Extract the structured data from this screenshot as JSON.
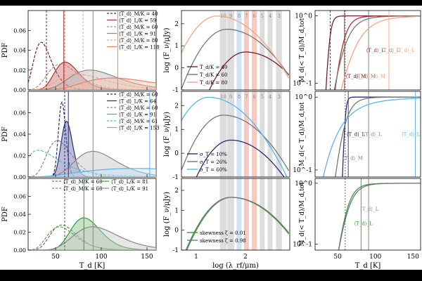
{
  "chart_data": [
    {
      "type": "area",
      "title": "",
      "xlabel": "T_d [K]",
      "ylabel": "PDF",
      "xlim": [
        20,
        160
      ],
      "ylim": [
        0,
        0.08
      ],
      "yticks": [
        "0.00",
        "0.02",
        "0.04",
        "0.06"
      ],
      "xticks": [
        "50",
        "100",
        "150"
      ],
      "rows": [
        {
          "color_hex": [
            "#7a1c2e",
            "#b03030",
            "#e08070",
            "#8c8c8c",
            "#f4a582",
            "#f08060"
          ],
          "legend": [
            {
              "label": "⟨T_d⟩_M/K = 40",
              "style": "dashed",
              "color": "#7a1c2e"
            },
            {
              "label": "⟨T_d⟩_L/K = 59",
              "style": "solid",
              "color": "#b03030"
            },
            {
              "label": "⟨T_d⟩_M/K = 60",
              "style": "dashed",
              "color": "#d08080"
            },
            {
              "label": "⟨T_d⟩_L/K = 91",
              "style": "solid",
              "color": "#888888"
            },
            {
              "label": "⟨T_d⟩_M/K = 80",
              "style": "dashed",
              "color": "#f4a582"
            },
            {
              "label": "⟨T_d⟩_L/K = 118",
              "style": "solid",
              "color": "#f08060"
            }
          ]
        },
        {
          "legend": [
            {
              "label": "⟨T_d⟩_M/K = 60",
              "style": "dashed",
              "color": "#2c2c7a"
            },
            {
              "label": "⟨T_d⟩_L/K = 64",
              "style": "solid",
              "color": "#2c2c7a"
            },
            {
              "label": "⟨T_d⟩_M/K = 60",
              "style": "dashed",
              "color": "#888888"
            },
            {
              "label": "⟨T_d⟩_L/K = 91",
              "style": "solid",
              "color": "#888888"
            },
            {
              "label": "⟨T_d⟩_M/K = 61",
              "style": "dashed",
              "color": "#5ab4e8"
            },
            {
              "label": "⟨T_d⟩_L/K = 153",
              "style": "solid",
              "color": "#5ab4e8"
            }
          ]
        },
        {
          "legend": [
            {
              "label": "⟨T_d⟩_M/K = 60",
              "style": "dashed",
              "color": "#3a9a3a"
            },
            {
              "label": "⟨T_d⟩_L/K = 81",
              "style": "solid",
              "color": "#3a9a3a"
            },
            {
              "label": "⟨T_d⟩_M/K = 60",
              "style": "dashed",
              "color": "#888888"
            },
            {
              "label": "⟨T_d⟩_L/K = 91",
              "style": "solid",
              "color": "#888888"
            }
          ]
        }
      ]
    },
    {
      "type": "line",
      "title": "",
      "xlabel": "log (λ_rf/μm)",
      "ylabel": "log (F_ν/μJy)",
      "xlim": [
        0.7,
        2.9
      ],
      "ylim": [
        -1,
        2.6
      ],
      "yticks": [
        "-1",
        "0",
        "1",
        "2"
      ],
      "xticks": [
        "1",
        "2"
      ],
      "band_labels": [
        "10",
        "9",
        "8",
        "7",
        "6",
        "5",
        "4",
        "3"
      ],
      "rows": [
        {
          "legend": [
            {
              "label": "T_d/K = 40",
              "color": "#7a1c2e"
            },
            {
              "label": "T_d/K = 60",
              "color": "#777777"
            },
            {
              "label": "T_d/K = 80",
              "color": "#f4a582"
            }
          ]
        },
        {
          "legend": [
            {
              "label": "σ_T = 10%",
              "color": "#2c2c7a"
            },
            {
              "label": "σ_T = 26%",
              "color": "#777777"
            },
            {
              "label": "σ_T = 60%",
              "color": "#5ab4e8"
            }
          ]
        },
        {
          "legend": [
            {
              "label": "skewness ζ = 0.01",
              "color": "#3a9a3a"
            },
            {
              "label": "skewness ζ = 0.98",
              "color": "#777777"
            }
          ]
        }
      ]
    },
    {
      "type": "line",
      "title": "",
      "xlabel": "T_d [K]",
      "ylabel": "M_d(< T_d)/M_d,tot",
      "xlim": [
        20,
        160
      ],
      "yscale": "log",
      "ylim": [
        0.08,
        1.2
      ],
      "yticks": [
        "10^-1",
        "10^0"
      ],
      "xticks": [
        "50",
        "100",
        "150"
      ],
      "rows": [
        {
          "annotations": [
            "⟨T_d⟩_L",
            "⟨T_d⟩_L",
            "⟨T_d⟩_L",
            "⟨T_d⟩_M",
            "⟨T_d⟩_M",
            "⟨T_d⟩_M"
          ]
        },
        {
          "annotations": [
            "⟨T_d⟩_L",
            "⟨T_d⟩_L",
            "⟨T_d⟩_L",
            "⟨T_d⟩_M"
          ]
        },
        {
          "annotations": [
            "⟨T_d⟩_L",
            "⟨T_d⟩_L"
          ]
        }
      ]
    }
  ]
}
